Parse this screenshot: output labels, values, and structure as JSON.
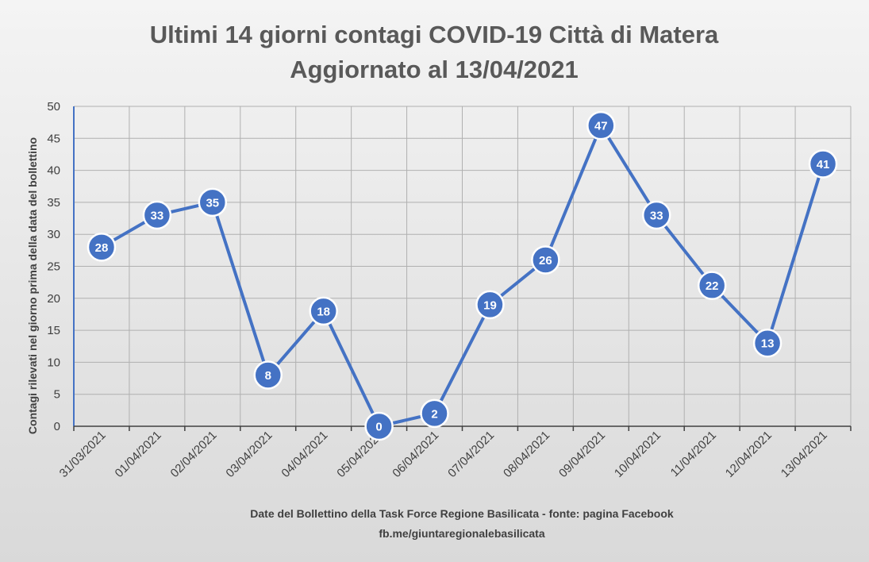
{
  "chart_data": {
    "type": "line",
    "title": "Ultimi 14 giorni contagi COVID-19 Città di Matera",
    "subtitle": "Aggiornato al 13/04/2021",
    "xlabel": "Date del Bollettino della Task Force Regione Basilicata - fonte: pagina Facebook",
    "xlabel2": "fb.me/giuntaregionalebasilicata",
    "ylabel": "Contagi rilevati nel giorno prima della data del bollettino",
    "categories": [
      "31/03/2021",
      "01/04/2021",
      "02/04/2021",
      "03/04/2021",
      "04/04/2021",
      "05/04/2021",
      "06/04/2021",
      "07/04/2021",
      "08/04/2021",
      "09/04/2021",
      "10/04/2021",
      "11/04/2021",
      "12/04/2021",
      "13/04/2021"
    ],
    "values": [
      28,
      33,
      35,
      8,
      18,
      0,
      2,
      19,
      26,
      47,
      33,
      22,
      13,
      41
    ],
    "ylim": [
      0,
      50
    ],
    "yticks": [
      0,
      5,
      10,
      15,
      20,
      25,
      30,
      35,
      40,
      45,
      50
    ],
    "grid": true,
    "legend": "none",
    "line_color": "#4472c4",
    "marker_color": "#4472c4"
  }
}
